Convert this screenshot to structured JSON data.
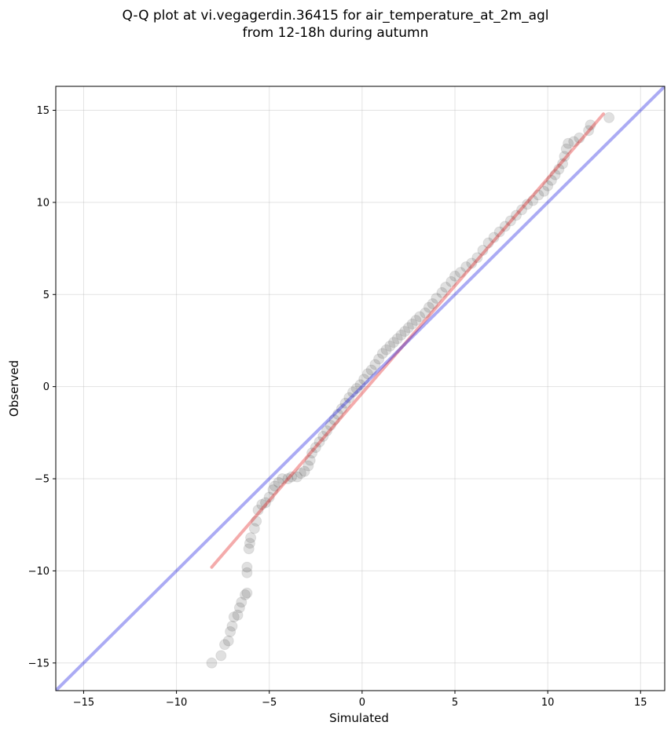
{
  "chart_data": {
    "type": "scatter",
    "title": [
      "Q-Q plot at vi.vegagerdin.36415 for air_temperature_at_2m_agl",
      "from 12-18h during autumn"
    ],
    "xlabel": "Simulated",
    "ylabel": "Observed",
    "xlim": [
      -16.5,
      16.3
    ],
    "ylim": [
      -16.5,
      16.3
    ],
    "xticks": [
      -15,
      -10,
      -5,
      0,
      5,
      10,
      15
    ],
    "yticks": [
      -15,
      -10,
      -5,
      0,
      5,
      10,
      15
    ],
    "xtick_labels": [
      "−15",
      "−10",
      "−5",
      "0",
      "5",
      "10",
      "15"
    ],
    "ytick_labels": [
      "−15",
      "−10",
      "−5",
      "0",
      "5",
      "10",
      "15"
    ],
    "grid": true,
    "reference_line": {
      "slope": 1,
      "intercept": 0,
      "color": "#0000dd"
    },
    "fit_line": {
      "x": [
        -8.1,
        13.0
      ],
      "y": [
        -9.8,
        14.8
      ],
      "color": "#dd0000"
    },
    "points_color": "#000000",
    "points": [
      [
        -8.1,
        -15.0
      ],
      [
        -7.6,
        -14.6
      ],
      [
        -7.4,
        -14.0
      ],
      [
        -7.2,
        -13.8
      ],
      [
        -7.1,
        -13.3
      ],
      [
        -7.0,
        -13.0
      ],
      [
        -6.9,
        -12.5
      ],
      [
        -6.7,
        -12.4
      ],
      [
        -6.6,
        -12.0
      ],
      [
        -6.5,
        -11.7
      ],
      [
        -6.3,
        -11.3
      ],
      [
        -6.2,
        -11.2
      ],
      [
        -6.2,
        -10.1
      ],
      [
        -6.2,
        -9.8
      ],
      [
        -6.1,
        -8.8
      ],
      [
        -6.05,
        -8.5
      ],
      [
        -6.0,
        -8.2
      ],
      [
        -5.8,
        -7.7
      ],
      [
        -5.7,
        -7.3
      ],
      [
        -5.6,
        -6.7
      ],
      [
        -5.4,
        -6.4
      ],
      [
        -5.2,
        -6.3
      ],
      [
        -5.0,
        -6.0
      ],
      [
        -4.8,
        -5.6
      ],
      [
        -4.7,
        -5.4
      ],
      [
        -4.5,
        -5.2
      ],
      [
        -4.3,
        -5.0
      ],
      [
        -4.0,
        -5.0
      ],
      [
        -3.8,
        -4.9
      ],
      [
        -3.5,
        -4.9
      ],
      [
        -3.3,
        -4.7
      ],
      [
        -3.1,
        -4.6
      ],
      [
        -2.9,
        -4.3
      ],
      [
        -2.8,
        -4.0
      ],
      [
        -2.7,
        -3.6
      ],
      [
        -2.5,
        -3.3
      ],
      [
        -2.3,
        -3.0
      ],
      [
        -2.1,
        -2.7
      ],
      [
        -1.9,
        -2.4
      ],
      [
        -1.7,
        -2.1
      ],
      [
        -1.5,
        -1.8
      ],
      [
        -1.3,
        -1.5
      ],
      [
        -1.1,
        -1.2
      ],
      [
        -0.9,
        -0.9
      ],
      [
        -0.7,
        -0.6
      ],
      [
        -0.5,
        -0.3
      ],
      [
        -0.3,
        -0.1
      ],
      [
        -0.1,
        0.1
      ],
      [
        0.1,
        0.4
      ],
      [
        0.3,
        0.7
      ],
      [
        0.5,
        0.9
      ],
      [
        0.7,
        1.2
      ],
      [
        0.9,
        1.5
      ],
      [
        1.1,
        1.8
      ],
      [
        1.3,
        2.0
      ],
      [
        1.5,
        2.2
      ],
      [
        1.7,
        2.4
      ],
      [
        1.9,
        2.6
      ],
      [
        2.1,
        2.8
      ],
      [
        2.3,
        3.0
      ],
      [
        2.5,
        3.2
      ],
      [
        2.7,
        3.4
      ],
      [
        2.9,
        3.6
      ],
      [
        3.1,
        3.8
      ],
      [
        3.4,
        4.0
      ],
      [
        3.6,
        4.3
      ],
      [
        3.8,
        4.5
      ],
      [
        4.0,
        4.8
      ],
      [
        4.3,
        5.1
      ],
      [
        4.5,
        5.4
      ],
      [
        4.8,
        5.7
      ],
      [
        5.0,
        6.0
      ],
      [
        5.3,
        6.2
      ],
      [
        5.6,
        6.5
      ],
      [
        5.9,
        6.7
      ],
      [
        6.2,
        7.0
      ],
      [
        6.5,
        7.4
      ],
      [
        6.8,
        7.8
      ],
      [
        7.1,
        8.1
      ],
      [
        7.4,
        8.4
      ],
      [
        7.7,
        8.7
      ],
      [
        8.0,
        9.0
      ],
      [
        8.3,
        9.3
      ],
      [
        8.6,
        9.6
      ],
      [
        8.9,
        9.9
      ],
      [
        9.2,
        10.1
      ],
      [
        9.5,
        10.4
      ],
      [
        9.8,
        10.6
      ],
      [
        10.0,
        10.9
      ],
      [
        10.2,
        11.2
      ],
      [
        10.4,
        11.5
      ],
      [
        10.6,
        11.8
      ],
      [
        10.8,
        12.1
      ],
      [
        10.9,
        12.5
      ],
      [
        11.0,
        12.9
      ],
      [
        11.1,
        13.2
      ],
      [
        11.4,
        13.3
      ],
      [
        11.7,
        13.5
      ],
      [
        12.2,
        13.9
      ],
      [
        12.3,
        14.2
      ],
      [
        13.3,
        14.6
      ]
    ]
  }
}
